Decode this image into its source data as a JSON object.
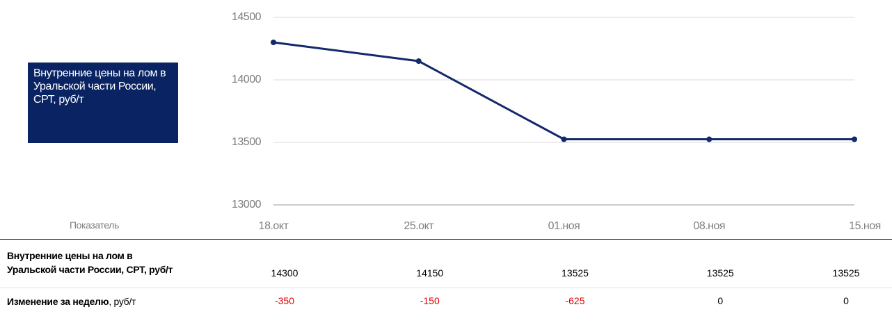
{
  "chart_data": {
    "type": "line",
    "categories": [
      "18.окт",
      "25.окт",
      "01.ноя",
      "08.ноя",
      "15.ноя"
    ],
    "series": [
      {
        "name": "Внутренние цены на лом в Уральской части России, СРТ, руб/т",
        "color": "#13296b",
        "values": [
          14300,
          14150,
          13525,
          13525,
          13525
        ]
      }
    ],
    "ylim": [
      13000,
      14500
    ],
    "yticks": [
      13000,
      13500,
      14000,
      14500
    ],
    "grid": true
  },
  "table": {
    "header": "Показатель",
    "rows": [
      {
        "label": [
          "Внутренние цены на лом в Уральской части России, СРТ, руб/т"
        ],
        "values": [
          14300,
          14150,
          13525,
          13525,
          13525
        ]
      },
      {
        "label": [
          "Изменение за неделю",
          ", руб/т"
        ],
        "values": [
          -350,
          -150,
          -625,
          0,
          0
        ]
      }
    ]
  }
}
